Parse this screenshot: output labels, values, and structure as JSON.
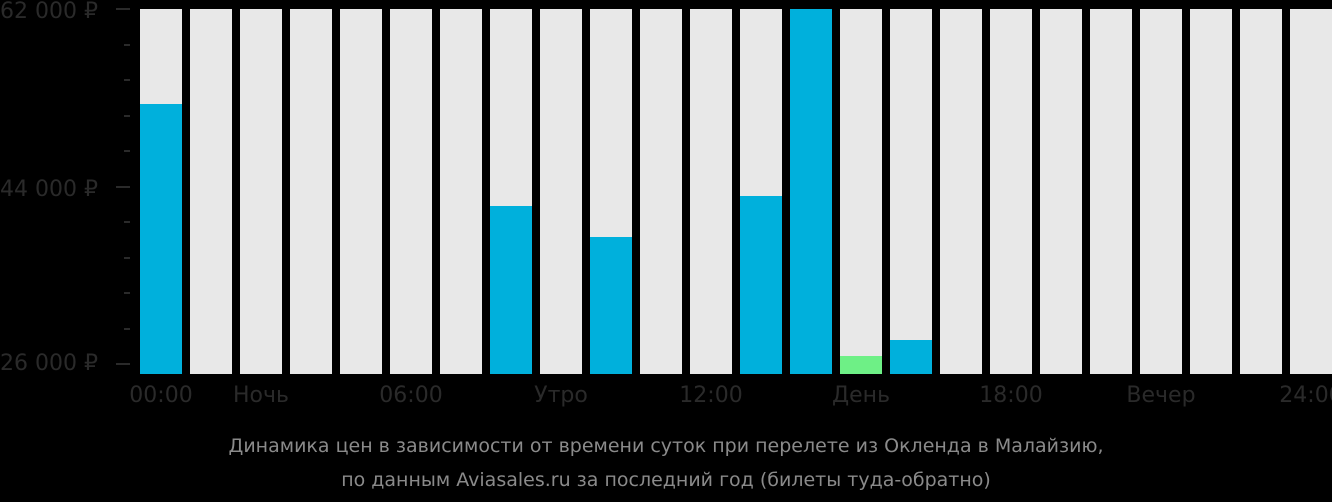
{
  "chart_data": {
    "type": "bar",
    "title": "Динамика цен в зависимости от времени суток при перелете из Окленда в Малайзию, по данным Aviasales.ru за последний год (билеты туда-обратно)",
    "xlabel": "",
    "ylabel": "",
    "ylim": [
      26000,
      62000
    ],
    "y_ticks": [
      "26 000 ₽",
      "44 000 ₽",
      "62 000 ₽"
    ],
    "x_tick_labels": [
      "00:00",
      "Ночь",
      "06:00",
      "Утро",
      "12:00",
      "День",
      "18:00",
      "Вечер",
      "24:00"
    ],
    "categories": [
      "00",
      "01",
      "02",
      "03",
      "04",
      "05",
      "06",
      "07",
      "08",
      "09",
      "10",
      "11",
      "12",
      "13",
      "14",
      "15",
      "16",
      "17",
      "18",
      "19",
      "20",
      "21",
      "22",
      "23"
    ],
    "values": [
      52400,
      null,
      null,
      null,
      null,
      null,
      null,
      42000,
      null,
      38900,
      null,
      null,
      43000,
      62800,
      26800,
      28400,
      null,
      null,
      null,
      null,
      null,
      null,
      null,
      null
    ],
    "highlight": {
      "index": 14,
      "color": "#6ef086",
      "meaning": "cheapest"
    },
    "colors": {
      "bar": "#00b0dc",
      "cheapest": "#6ef086",
      "empty_slot": "#e8e8e8",
      "background": "#000000"
    },
    "grid": false,
    "legend": null
  },
  "axis": {
    "y_labels": [
      "62 000 ₽",
      "44 000 ₽",
      "26 000 ₽"
    ],
    "x_labels": [
      "00:00",
      "Ночь",
      "06:00",
      "Утро",
      "12:00",
      "День",
      "18:00",
      "Вечер",
      "24:00"
    ]
  },
  "caption": {
    "line1": "Динамика цен в зависимости от времени суток при перелете из Окленда в Малайзию,",
    "line2": "по данным Aviasales.ru за последний год (билеты туда-обратно)"
  }
}
